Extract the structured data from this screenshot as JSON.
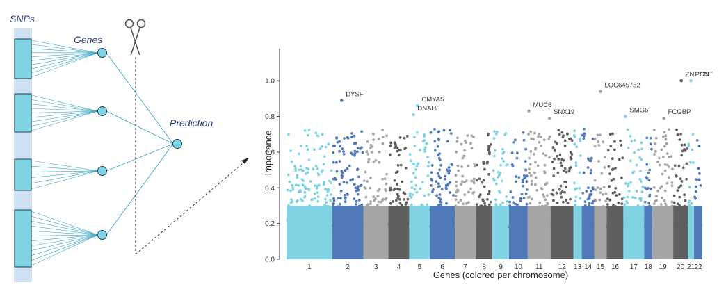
{
  "network": {
    "snps_label": "SNPs",
    "genes_label": "Genes",
    "prediction_label": "Prediction",
    "colors": {
      "bar": "#cfe0f2",
      "box": "#7fd3e3",
      "line": "#3aa6bf",
      "stroke": "#1f3b55"
    },
    "icons": [
      "scissors-icon",
      "arrow-icon"
    ]
  },
  "chart_data": {
    "type": "scatter",
    "xlabel": "Genes (colored per chromosome)",
    "ylabel": "Importance",
    "ylim": [
      0,
      1.18
    ],
    "yticks": [
      "0.0",
      "0.2",
      "0.4",
      "0.6",
      "0.8",
      "1.0"
    ],
    "ytick_values": [
      0,
      0.2,
      0.4,
      0.6,
      0.8,
      1.0
    ],
    "chromosome_colors": [
      "#7fd3e3",
      "#4f79b8",
      "#a6a6a6",
      "#5f5f5f"
    ],
    "chromosomes": [
      {
        "label": "1",
        "count": 22
      },
      {
        "label": "2",
        "count": 15
      },
      {
        "label": "3",
        "count": 12
      },
      {
        "label": "4",
        "count": 10
      },
      {
        "label": "5",
        "count": 10
      },
      {
        "label": "6",
        "count": 12
      },
      {
        "label": "7",
        "count": 10
      },
      {
        "label": "8",
        "count": 8
      },
      {
        "label": "9",
        "count": 8
      },
      {
        "label": "10",
        "count": 9
      },
      {
        "label": "11",
        "count": 11
      },
      {
        "label": "12",
        "count": 11
      },
      {
        "label": "13",
        "count": 4
      },
      {
        "label": "14",
        "count": 6
      },
      {
        "label": "15",
        "count": 6
      },
      {
        "label": "16",
        "count": 8
      },
      {
        "label": "17",
        "count": 10
      },
      {
        "label": "18",
        "count": 4
      },
      {
        "label": "19",
        "count": 10
      },
      {
        "label": "20",
        "count": 7
      },
      {
        "label": "21",
        "count": 3
      },
      {
        "label": "22",
        "count": 4
      }
    ],
    "annotated_genes": [
      {
        "name": "DYSF",
        "chrom": "2",
        "pos": 0.3,
        "y": 0.89
      },
      {
        "name": "CMYA5",
        "chrom": "5",
        "pos": 0.4,
        "y": 0.86
      },
      {
        "name": "DNAH5",
        "chrom": "5",
        "pos": 0.2,
        "y": 0.81
      },
      {
        "name": "MUC6",
        "chrom": "11",
        "pos": 0.05,
        "y": 0.83
      },
      {
        "name": "SNX19",
        "chrom": "11",
        "pos": 0.95,
        "y": 0.79
      },
      {
        "name": "LOC645752",
        "chrom": "15",
        "pos": 0.5,
        "y": 0.94
      },
      {
        "name": "SMG6",
        "chrom": "17",
        "pos": 0.1,
        "y": 0.8
      },
      {
        "name": "FCGBP",
        "chrom": "19",
        "pos": 0.55,
        "y": 0.79
      },
      {
        "name": "ZNF773",
        "chrom": "20",
        "pos": 0.55,
        "y": 1.0
      },
      {
        "name": "PCNT",
        "chrom": "21",
        "pos": 0.5,
        "y": 1.0
      }
    ]
  }
}
